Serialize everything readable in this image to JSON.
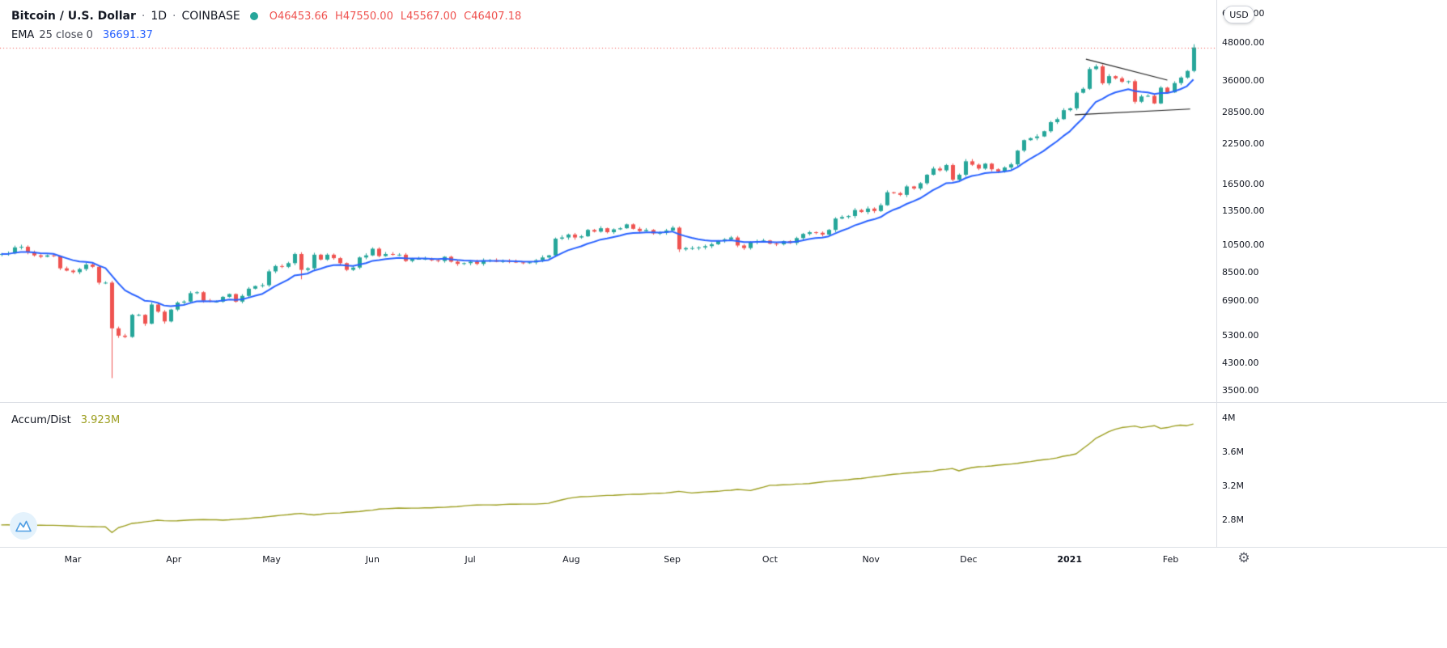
{
  "header": {
    "symbol_title": "Bitcoin / U.S. Dollar",
    "separator": "·",
    "interval": "1D",
    "exchange": "COINBASE",
    "ohlc": {
      "o_label": "O",
      "o_value": "46453.66",
      "h_label": "H",
      "h_value": "47550.00",
      "l_label": "L",
      "l_value": "45567.00",
      "c_label": "C",
      "c_value": "46407.18"
    },
    "ema_legend": {
      "name": "EMA",
      "params": "25 close 0",
      "value": "36691.37"
    }
  },
  "ad_legend": {
    "name": "Accum/Dist",
    "value": "3.923M"
  },
  "price_axis": {
    "unit_button_label": "USD",
    "ticks": [
      "60000.00",
      "48000.00",
      "36000.00",
      "28500.00",
      "22500.00",
      "16500.00",
      "13500.00",
      "10500.00",
      "8500.00",
      "6900.00",
      "5300.00",
      "4300.00",
      "3500.00"
    ]
  },
  "ad_axis": {
    "ticks": [
      "4M",
      "3.6M",
      "3.2M",
      "2.8M"
    ]
  },
  "time_axis": {
    "labels": [
      {
        "label": "Mar",
        "i": 11
      },
      {
        "label": "Apr",
        "i": 26.5
      },
      {
        "label": "May",
        "i": 41.5
      },
      {
        "label": "Jun",
        "i": 57
      },
      {
        "label": "Jul",
        "i": 72
      },
      {
        "label": "Aug",
        "i": 87.5
      },
      {
        "label": "Sep",
        "i": 103
      },
      {
        "label": "Oct",
        "i": 118
      },
      {
        "label": "Nov",
        "i": 133.5
      },
      {
        "label": "Dec",
        "i": 148.5
      },
      {
        "label": "2021",
        "i": 164,
        "strong": true
      },
      {
        "label": "Feb",
        "i": 179.5
      }
    ]
  },
  "colors": {
    "up": "#26a69a",
    "down": "#ef5350",
    "ema": "#2962ff",
    "ad_line": "#9c9e1f",
    "price_line": "#ef5350",
    "trendline": "#232323",
    "axis_text": "#131722",
    "accent_teal": "#26a69a",
    "value_blue": "#2962ff"
  },
  "chart_data": [
    {
      "type": "candlestick",
      "title": "Bitcoin / U.S. Dollar, 1D, COINBASE",
      "x_start_date": "2020-02-08",
      "x_step_days": 2,
      "y_scale": "log",
      "ylim": [
        3215,
        66350
      ],
      "y_ticks": [
        60000,
        48000,
        36000,
        28500,
        22500,
        16500,
        13500,
        10500,
        8500,
        6900,
        5300,
        4300,
        3500
      ],
      "closes": [
        9800,
        9850,
        10300,
        10350,
        9950,
        9700,
        9600,
        9700,
        9650,
        8800,
        8650,
        8550,
        8750,
        9050,
        8900,
        7900,
        7900,
        5600,
        5300,
        5250,
        6200,
        6200,
        5800,
        6700,
        6350,
        5900,
        6450,
        6800,
        6850,
        7300,
        7350,
        6900,
        6850,
        6850,
        7100,
        7250,
        6850,
        7150,
        7550,
        7700,
        7750,
        8600,
        8950,
        8900,
        9150,
        9800,
        8700,
        8800,
        9750,
        9400,
        9750,
        9500,
        9150,
        8700,
        8850,
        9550,
        9700,
        10200,
        9650,
        9800,
        9750,
        9750,
        9300,
        9450,
        9450,
        9450,
        9350,
        9300,
        9600,
        9250,
        9100,
        9150,
        9250,
        9100,
        9350,
        9350,
        9250,
        9300,
        9250,
        9200,
        9150,
        9200,
        9350,
        9550,
        9700,
        11000,
        11100,
        11350,
        11100,
        11200,
        11750,
        11600,
        11900,
        11550,
        11800,
        11900,
        12250,
        11850,
        11650,
        11750,
        11450,
        11500,
        11700,
        11950,
        10150,
        10250,
        10250,
        10300,
        10400,
        10550,
        10800,
        10950,
        11100,
        10450,
        10250,
        10700,
        10800,
        10850,
        10600,
        10550,
        10800,
        10650,
        11050,
        11400,
        11550,
        11500,
        11350,
        11750,
        12800,
        12950,
        13050,
        13650,
        13450,
        13800,
        13550,
        14150,
        15600,
        15500,
        15300,
        16300,
        16050,
        16700,
        17800,
        18650,
        18400,
        19150,
        17150,
        17800,
        19700,
        19200,
        18650,
        19350,
        18550,
        18250,
        18800,
        19250,
        21350,
        23100,
        23450,
        23750,
        24700,
        26450,
        27050,
        28950,
        29350,
        33000,
        34000,
        39450,
        40250,
        35450,
        37400,
        36800,
        35850,
        36000,
        30850,
        32100,
        32250,
        30450,
        34300,
        33100,
        35500,
        37000,
        38900,
        46407.18
      ],
      "wick_overrides": {
        "17": {
          "low": 3850
        },
        "46": {
          "low": 8100
        },
        "104": {
          "low": 9950
        },
        "183": {
          "high": 47550,
          "low": 38500
        }
      },
      "last_candle_ohlc": {
        "open": 46453.66,
        "high": 47550.0,
        "low": 45567.0,
        "close": 46407.18
      },
      "current_price": 46407.18,
      "ema": {
        "label": "EMA 25",
        "period_bars": 12,
        "last_value": 36691.37
      },
      "trendlines": [
        {
          "i1": 166.5,
          "p1": 42500,
          "i2": 179,
          "p2": 36300
        },
        {
          "i1": 164.8,
          "p1": 27950,
          "i2": 182.5,
          "p2": 29200
        }
      ]
    },
    {
      "type": "line",
      "name": "Accum/Dist",
      "unit": "M",
      "current_value": 3.923,
      "ylim": [
        2.486,
        4.19
      ],
      "y_ticks": [
        4.0,
        3.6,
        3.2,
        2.8
      ],
      "anchors": [
        [
          0,
          2.745
        ],
        [
          4,
          2.74
        ],
        [
          8,
          2.74
        ],
        [
          12,
          2.73
        ],
        [
          16,
          2.72
        ],
        [
          17,
          2.655
        ],
        [
          18,
          2.71
        ],
        [
          20,
          2.76
        ],
        [
          22,
          2.78
        ],
        [
          24,
          2.8
        ],
        [
          26,
          2.79
        ],
        [
          28,
          2.8
        ],
        [
          31,
          2.81
        ],
        [
          34,
          2.8
        ],
        [
          38,
          2.82
        ],
        [
          42,
          2.85
        ],
        [
          46,
          2.88
        ],
        [
          48,
          2.86
        ],
        [
          50,
          2.88
        ],
        [
          53,
          2.89
        ],
        [
          56,
          2.91
        ],
        [
          58,
          2.93
        ],
        [
          61,
          2.94
        ],
        [
          64,
          2.94
        ],
        [
          67,
          2.95
        ],
        [
          70,
          2.96
        ],
        [
          73,
          2.98
        ],
        [
          76,
          2.98
        ],
        [
          79,
          2.99
        ],
        [
          82,
          2.99
        ],
        [
          84,
          3.0
        ],
        [
          86,
          3.04
        ],
        [
          88,
          3.07
        ],
        [
          90,
          3.08
        ],
        [
          93,
          3.09
        ],
        [
          96,
          3.1
        ],
        [
          99,
          3.11
        ],
        [
          102,
          3.12
        ],
        [
          104,
          3.14
        ],
        [
          106,
          3.12
        ],
        [
          108,
          3.13
        ],
        [
          110,
          3.14
        ],
        [
          113,
          3.16
        ],
        [
          115,
          3.15
        ],
        [
          118,
          3.21
        ],
        [
          121,
          3.22
        ],
        [
          124,
          3.23
        ],
        [
          126,
          3.25
        ],
        [
          129,
          3.27
        ],
        [
          132,
          3.29
        ],
        [
          134,
          3.31
        ],
        [
          137,
          3.34
        ],
        [
          140,
          3.36
        ],
        [
          143,
          3.38
        ],
        [
          146,
          3.41
        ],
        [
          147,
          3.38
        ],
        [
          149,
          3.42
        ],
        [
          152,
          3.44
        ],
        [
          155,
          3.46
        ],
        [
          157,
          3.48
        ],
        [
          159,
          3.5
        ],
        [
          161,
          3.52
        ],
        [
          163,
          3.55
        ],
        [
          165,
          3.58
        ],
        [
          166,
          3.64
        ],
        [
          167,
          3.7
        ],
        [
          168,
          3.76
        ],
        [
          169,
          3.8
        ],
        [
          170,
          3.84
        ],
        [
          171,
          3.87
        ],
        [
          172,
          3.89
        ],
        [
          173,
          3.9
        ],
        [
          174,
          3.91
        ],
        [
          175,
          3.89
        ],
        [
          176,
          3.9
        ],
        [
          177,
          3.91
        ],
        [
          178,
          3.88
        ],
        [
          179,
          3.89
        ],
        [
          180,
          3.91
        ],
        [
          181,
          3.92
        ],
        [
          182,
          3.91
        ],
        [
          183,
          3.93
        ]
      ]
    }
  ]
}
